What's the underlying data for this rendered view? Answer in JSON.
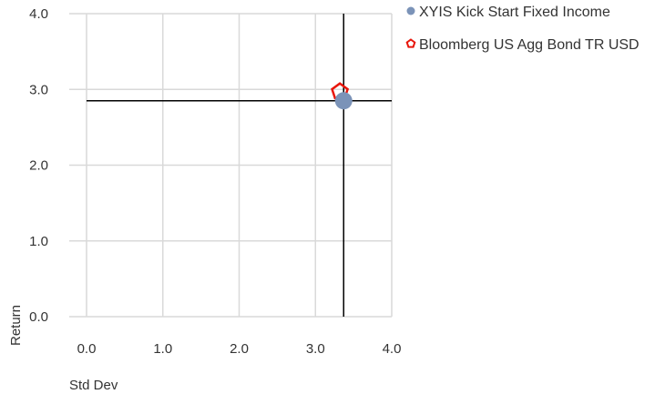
{
  "chart_data": {
    "type": "scatter",
    "title": "",
    "xlabel": "Std Dev",
    "ylabel": "Return",
    "xlim": [
      0,
      4
    ],
    "ylim": [
      0,
      4
    ],
    "x_ticks": [
      "0.0",
      "1.0",
      "2.0",
      "3.0",
      "4.0"
    ],
    "y_ticks": [
      "0.0",
      "1.0",
      "2.0",
      "3.0",
      "4.0"
    ],
    "grid": "vertical",
    "legend_position": "top-right",
    "crosshair": {
      "x": 3.37,
      "y": 2.85
    },
    "series": [
      {
        "name": "XYIS Kick Start Fixed Income",
        "x": 3.37,
        "y": 2.85,
        "marker": "circle",
        "color": "#7b93b8"
      },
      {
        "name": "Bloomberg US Agg Bond TR USD",
        "x": 3.32,
        "y": 2.97,
        "marker": "pentagon-outline",
        "color": "#e8160b"
      }
    ]
  }
}
